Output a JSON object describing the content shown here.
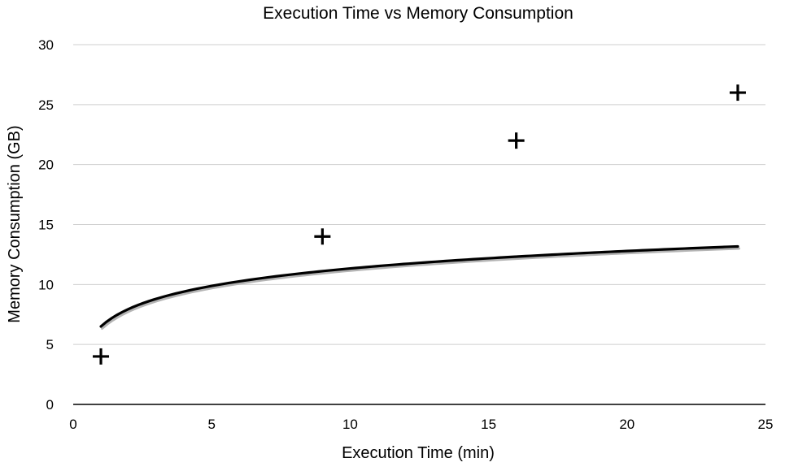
{
  "chart_data": {
    "type": "scatter",
    "title": "Execution Time vs Memory Consumption",
    "xlabel": "Execution Time (min)",
    "ylabel": "Memory Consumption (GB)",
    "xlim": [
      0,
      25
    ],
    "ylim": [
      0,
      30
    ],
    "xticks": [
      0,
      5,
      10,
      15,
      20,
      25
    ],
    "yticks": [
      0,
      5,
      10,
      15,
      20,
      25,
      30
    ],
    "grid": true,
    "marker": "plus",
    "points": [
      {
        "x": 1,
        "y": 4
      },
      {
        "x": 9,
        "y": 14
      },
      {
        "x": 16,
        "y": 22
      },
      {
        "x": 24,
        "y": 26
      }
    ],
    "trendline": {
      "type": "logarithmic",
      "a": 2.1,
      "b": 6.5,
      "x_range": [
        1,
        24
      ]
    }
  }
}
